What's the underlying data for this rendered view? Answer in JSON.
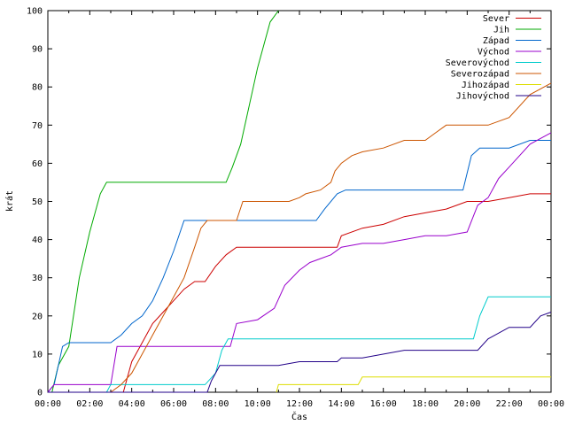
{
  "chart_data": {
    "type": "line",
    "xlabel": "Čas",
    "ylabel": "krát",
    "xlim": [
      0,
      24
    ],
    "ylim": [
      0,
      100
    ],
    "grid": false,
    "legend_position": "top-right",
    "x_ticks": [
      "00:00",
      "02:00",
      "04:00",
      "06:00",
      "08:00",
      "10:00",
      "12:00",
      "14:00",
      "16:00",
      "18:00",
      "20:00",
      "22:00",
      "00:00"
    ],
    "y_ticks": [
      "0",
      "10",
      "20",
      "30",
      "40",
      "50",
      "60",
      "70",
      "80",
      "90",
      "100"
    ],
    "series": [
      {
        "name": "Sever",
        "color": "#cc0000",
        "x": [
          0,
          3.6,
          4.0,
          4.5,
          5.0,
          5.5,
          6.0,
          6.5,
          7.0,
          7.5,
          8.0,
          8.5,
          9.0,
          10.0,
          11.0,
          12.0,
          13.0,
          13.8,
          14.0,
          15.0,
          16.0,
          17.0,
          18.0,
          19.0,
          20.0,
          21.0,
          22.0,
          23.0,
          24.0
        ],
        "values": [
          0,
          0,
          8,
          13,
          18,
          21,
          24,
          27,
          29,
          29,
          33,
          36,
          38,
          38,
          38,
          38,
          38,
          38,
          41,
          43,
          44,
          46,
          47,
          48,
          50,
          50,
          51,
          52,
          52
        ]
      },
      {
        "name": "Jih",
        "color": "#00aa00",
        "x": [
          0,
          0.2,
          0.5,
          1.0,
          1.5,
          2.0,
          2.5,
          2.8,
          3.0,
          5.0,
          7.0,
          8.5,
          8.8,
          9.2,
          9.6,
          10.0,
          10.6,
          11.0
        ],
        "values": [
          0,
          0,
          7,
          12,
          30,
          42,
          52,
          55,
          55,
          55,
          55,
          55,
          59,
          65,
          75,
          85,
          97,
          100
        ]
      },
      {
        "name": "Západ",
        "color": "#0066cc",
        "x": [
          0,
          0.3,
          0.7,
          1.0,
          2.0,
          3.0,
          3.5,
          4.0,
          4.5,
          5.0,
          5.5,
          6.0,
          6.5,
          7.0,
          8.0,
          10.0,
          12.0,
          12.8,
          13.2,
          13.8,
          14.2,
          16.0,
          18.0,
          19.8,
          20.2,
          20.6,
          21.0,
          22.0,
          23.0,
          24.0
        ],
        "values": [
          0,
          2,
          12,
          13,
          13,
          13,
          15,
          18,
          20,
          24,
          30,
          37,
          45,
          45,
          45,
          45,
          45,
          45,
          48,
          52,
          53,
          53,
          53,
          53,
          62,
          64,
          64,
          64,
          66,
          66
        ]
      },
      {
        "name": "Východ",
        "color": "#9900cc",
        "x": [
          0,
          0.3,
          2.0,
          3.0,
          3.3,
          4.0,
          6.0,
          8.0,
          8.7,
          9.0,
          10.0,
          10.8,
          11.3,
          12.0,
          12.5,
          13.0,
          13.5,
          14.0,
          15.0,
          16.0,
          17.0,
          18.0,
          19.0,
          20.0,
          20.5,
          21.0,
          21.5,
          22.0,
          23.0,
          24.0
        ],
        "values": [
          0,
          2,
          2,
          2,
          12,
          12,
          12,
          12,
          12,
          18,
          19,
          22,
          28,
          32,
          34,
          35,
          36,
          38,
          39,
          39,
          40,
          41,
          41,
          42,
          49,
          51,
          56,
          59,
          65,
          68
        ]
      },
      {
        "name": "Severovýchod",
        "color": "#00cccc",
        "x": [
          0,
          2.8,
          3.0,
          5.0,
          7.5,
          8.0,
          8.3,
          8.6,
          9.0,
          11.0,
          13.0,
          15.0,
          17.0,
          19.0,
          20.3,
          20.6,
          21.0,
          22.0,
          24.0
        ],
        "values": [
          0,
          0,
          2,
          2,
          2,
          5,
          11,
          14,
          14,
          14,
          14,
          14,
          14,
          14,
          14,
          20,
          25,
          25,
          25
        ]
      },
      {
        "name": "Severozápad",
        "color": "#cc5500",
        "x": [
          0,
          3.0,
          3.5,
          4.0,
          4.5,
          5.0,
          5.5,
          6.0,
          6.5,
          7.0,
          7.3,
          7.6,
          8.0,
          9.0,
          9.3,
          10.5,
          11.5,
          12.0,
          12.3,
          13.0,
          13.5,
          13.7,
          14.0,
          14.5,
          15.0,
          16.0,
          17.0,
          18.0,
          18.5,
          19.0,
          20.0,
          21.0,
          22.0,
          23.0,
          24.0
        ],
        "values": [
          0,
          0,
          2,
          5,
          10,
          15,
          20,
          25,
          30,
          38,
          43,
          45,
          45,
          45,
          50,
          50,
          50,
          51,
          52,
          53,
          55,
          58,
          60,
          62,
          63,
          64,
          66,
          66,
          68,
          70,
          70,
          70,
          72,
          78,
          81
        ]
      },
      {
        "name": "Jihozápad",
        "color": "#dddd00",
        "x": [
          10.9,
          11.0,
          13.0,
          14.8,
          15.0,
          17.0,
          19.0,
          21.0,
          23.0,
          24.0
        ],
        "values": [
          0,
          2,
          2,
          2,
          4,
          4,
          4,
          4,
          4,
          4
        ]
      },
      {
        "name": "Jihovýchod",
        "color": "#220088",
        "x": [
          0,
          7.6,
          7.8,
          8.2,
          9.0,
          11.0,
          12.0,
          13.8,
          14.0,
          15.0,
          17.0,
          19.0,
          20.5,
          21.0,
          22.0,
          23.0,
          23.5,
          24.0
        ],
        "values": [
          0,
          0,
          3,
          7,
          7,
          7,
          8,
          8,
          9,
          9,
          11,
          11,
          11,
          14,
          17,
          17,
          20,
          21
        ]
      }
    ]
  }
}
